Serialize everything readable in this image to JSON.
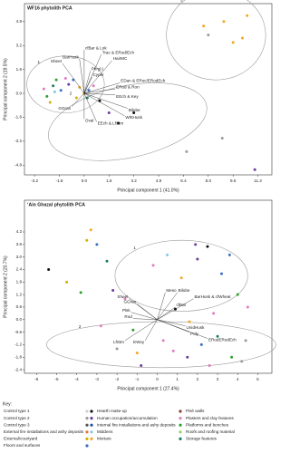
{
  "chart_data": [
    {
      "type": "scatter",
      "title": "WF16 phytolith PCA",
      "x_label": "Principal component 1 (41.0%)",
      "y_label": "Principal component 2 (19.5%)",
      "xlim": [
        -3.85,
        12.1
      ],
      "ylim": [
        -5.45,
        6.0
      ],
      "xticks": [
        -3.2,
        -1.6,
        {
          "value": 0,
          "label": "0.0"
        },
        1.6,
        3.2,
        4.8,
        6.4,
        {
          "value": 8,
          "label": "8.0"
        },
        9.6,
        11.2
      ],
      "yticks": [
        4.8,
        3.2,
        1.6,
        {
          "value": 0,
          "label": "0.0"
        },
        -1.6,
        -3.2,
        -4.8
      ],
      "series": [
        {
          "color": "#f5a623",
          "x": [
            0,
            7.7,
            9,
            10.2,
            9.6,
            10.5,
            -0.3
          ],
          "values": [
            0,
            4.5,
            4.8,
            3.7,
            3.4,
            5.2,
            0.4
          ]
        },
        {
          "color": "#e07bc0",
          "x": [
            -2.6,
            0.6,
            -1.2
          ],
          "values": [
            0.3,
            0.5,
            1.0
          ]
        },
        {
          "color": "#2ca02c",
          "x": [
            -2.4,
            -1.8
          ],
          "values": [
            -0.2,
            0.9
          ]
        },
        {
          "color": "#1b7f5f",
          "x": [
            -2.0,
            0.2
          ],
          "values": [
            0.5,
            -0.3
          ]
        },
        {
          "color": "#3a6fc4",
          "x": [
            -1.5,
            0.3,
            -0.7
          ],
          "values": [
            0.2,
            0.2,
            0.9
          ]
        },
        {
          "color": "#6a3d9a",
          "x": [
            -1,
            1.6,
            11.0
          ],
          "values": [
            0.6,
            -1.3,
            -5.1
          ]
        },
        {
          "color": "#d4b000",
          "x": [
            -0.5,
            -2.2
          ],
          "values": [
            -0.3,
            -0.6
          ]
        },
        {
          "color": "#111111",
          "x": [
            1,
            3.2,
            2.2
          ],
          "values": [
            -0.5,
            -1.3,
            -2.0
          ]
        },
        {
          "color": "#9a9a9a",
          "x": [
            8.0,
            8.9,
            6.6
          ],
          "values": [
            3.9,
            -3.0,
            -3.9
          ]
        },
        {
          "color": "#7ec8e3",
          "x": [
            -1.9
          ],
          "values": [
            0.1
          ]
        }
      ],
      "ellipses": [
        {
          "label": "1",
          "cx": -1.2,
          "cy": 0.6,
          "rx": 2.5,
          "ry": 1.9,
          "angle": 0
        },
        {
          "label": "2",
          "cx": 2.8,
          "cy": -1.9,
          "rx": 5.2,
          "ry": 2.4,
          "angle": -12
        },
        {
          "label": "3",
          "cx": 8.5,
          "cy": 3.9,
          "rx": 3.2,
          "ry": 3.0,
          "angle": 0
        }
      ],
      "loadings": [
        {
          "label": "Sheet",
          "x": -1.4,
          "y": 2.0
        },
        {
          "label": "BarHusk",
          "x": -0.3,
          "y": 2.3
        },
        {
          "label": "cfBar & Lok",
          "x": 0,
          "y": 2.9
        },
        {
          "label": "Trac & ERod/Ech",
          "x": 1.1,
          "y": 2.6
        },
        {
          "label": "HairMC",
          "x": 1.8,
          "y": 2.2
        },
        {
          "label": "Phrgl.I",
          "x": 0.4,
          "y": 1.5
        },
        {
          "label": "Cyper",
          "x": 0.5,
          "y": 1.1
        },
        {
          "label": "EDan & ERoc/ERodEch",
          "x": 2.3,
          "y": 0.7
        },
        {
          "label": "ERod & Ron",
          "x": 2.0,
          "y": 0.3
        },
        {
          "label": "EEch & Key",
          "x": 2.0,
          "y": -0.1
        },
        {
          "label": "Bilobe",
          "x": 2.8,
          "y": -1.0
        },
        {
          "label": "WhtHusk",
          "x": 2.6,
          "y": -1.5
        },
        {
          "label": "GGran",
          "x": -0.8,
          "y": -0.9
        },
        {
          "label": "Oval",
          "x": 0,
          "y": -1.7
        },
        {
          "label": "EEch & LfStm",
          "x": 0.8,
          "y": -1.9
        }
      ]
    },
    {
      "type": "scatter",
      "title": "‘Ain Ghazal phytolith PCA",
      "x_label": "Principal component 1 (27.4%)",
      "y_label": "Principal component 2 (20.7%)",
      "xlim": [
        -6.6,
        5.7
      ],
      "ylim": [
        -2.57,
        5.72
      ],
      "xticks": [
        -6,
        -5,
        -4,
        -3,
        -2,
        -1,
        0,
        1,
        2,
        3,
        4,
        5
      ],
      "yticks": [
        4.2,
        3.6,
        {
          "value": 3,
          "label": "3.0"
        },
        2.4,
        1.8,
        1.2,
        0.6,
        {
          "value": 0,
          "label": "0.0"
        },
        -0.6,
        -1.2,
        -1.8,
        -2.4
      ],
      "series": [
        {
          "color": "#111111",
          "x": [
            -5.4,
            0.9,
            2.5
          ],
          "values": [
            2.4,
            0.5,
            3.5
          ]
        },
        {
          "color": "#d4b000",
          "x": [
            -4.5,
            -3.5
          ],
          "values": [
            1.8,
            3.8
          ]
        },
        {
          "color": "#2ca02c",
          "x": [
            -3.8,
            -1.2,
            3.7,
            4.0
          ],
          "values": [
            1.3,
            -0.5,
            -1.8,
            1.2
          ]
        },
        {
          "color": "#f5a623",
          "x": [
            -3.3,
            -1.0,
            1.6,
            1.2
          ],
          "values": [
            4.3,
            -1.6,
            -0.1,
            2.0
          ]
        },
        {
          "color": "#3a6fc4",
          "x": [
            -3.0,
            2.2,
            3.2,
            3.6
          ],
          "values": [
            3.6,
            -1.2,
            2.2,
            3.1
          ]
        },
        {
          "color": "#1b7f5f",
          "x": [
            -2.5,
            3.0
          ],
          "values": [
            2.8,
            -0.8
          ]
        },
        {
          "color": "#6a3d9a",
          "x": [
            -2.2,
            1.5,
            2.0,
            1.9,
            -0.8
          ],
          "values": [
            1.4,
            -1.8,
            2.9,
            3.6,
            -2.2
          ]
        },
        {
          "color": "#e07bc0",
          "x": [
            -1.6,
            -2.8,
            0.3,
            0.8,
            2.8,
            4.5,
            -0.2,
            2.6
          ],
          "values": [
            1.0,
            -0.3,
            -1.0,
            -1.5,
            0.3,
            0.6,
            2.6,
            -2.2
          ]
        },
        {
          "color": "#9a9a9a",
          "x": [
            -2.0,
            4.4,
            4.2
          ],
          "values": [
            -1.4,
            -1.0,
            -2.0
          ]
        },
        {
          "color": "#7ec8e3",
          "x": [
            0.5
          ],
          "values": [
            3.1
          ]
        }
      ],
      "ellipses": [
        {
          "label": "1",
          "cx": 1.2,
          "cy": 2.1,
          "rx": 3.3,
          "ry": 1.7,
          "angle": 0
        },
        {
          "label": "2",
          "cx": 0.2,
          "cy": -1.2,
          "rx": 5.7,
          "ry": 1.1,
          "angle": 0
        }
      ],
      "loadings": [
        {
          "label": "Sheet",
          "x": -1.4,
          "y": 1.0
        },
        {
          "label": "GGran",
          "x": -1.0,
          "y": 0.75
        },
        {
          "label": "Meso",
          "x": 0.4,
          "y": 1.3
        },
        {
          "label": "Bilobe",
          "x": 1.0,
          "y": 1.3
        },
        {
          "label": "BarHusk & cfWheat",
          "x": 1.8,
          "y": 1.0
        },
        {
          "label": "cfBar",
          "x": 0.9,
          "y": 0.6
        },
        {
          "label": "Plsk",
          "x": -1.3,
          "y": 0.35
        },
        {
          "label": "Rod",
          "x": -1.2,
          "y": 0.05
        },
        {
          "label": "UnidHusk",
          "x": 1.4,
          "y": -0.3
        },
        {
          "label": "Poly",
          "x": 1.6,
          "y": -0.6
        },
        {
          "label": "LfStm",
          "x": -1.6,
          "y": -1.0
        },
        {
          "label": "EWvy",
          "x": -0.6,
          "y": -1.0
        },
        {
          "label": "ERodERodEch",
          "x": 2.5,
          "y": -0.9
        }
      ]
    }
  ],
  "key": {
    "title": "Key:",
    "items": [
      {
        "name": "Control type 1",
        "color": "#d0d0d0"
      },
      {
        "name": "Control type 2",
        "color": "#9a9a9a"
      },
      {
        "name": "Control type 3",
        "color": "#555555"
      },
      {
        "name": "External fire installations and ashy deposits",
        "color": "#e8702a"
      },
      {
        "name": "External/courtyard",
        "color": "#d4b000"
      },
      {
        "name": "Floors and surfaces",
        "color": "#3a6fc4"
      },
      {
        "name": "Hearth make-up",
        "color": "#111111"
      },
      {
        "name": "Human occupation/accumulation",
        "color": "#6a3d9a"
      },
      {
        "name": "Internal fire installations and ashy deposits",
        "color": "#1f4fa0"
      },
      {
        "name": "Middens",
        "color": "#7ec8e3"
      },
      {
        "name": "Mortars",
        "color": "#f5a623"
      },
      {
        "name": "Pisé walls",
        "color": "#8b3a2b"
      },
      {
        "name": "Plasters and clay features",
        "color": "#e07bc0"
      },
      {
        "name": "Platforms and benches",
        "color": "#2ca02c"
      },
      {
        "name": "Roofs and roofing material",
        "color": "#9ccc65"
      },
      {
        "name": "Storage features",
        "color": "#1b7f5f"
      }
    ]
  }
}
